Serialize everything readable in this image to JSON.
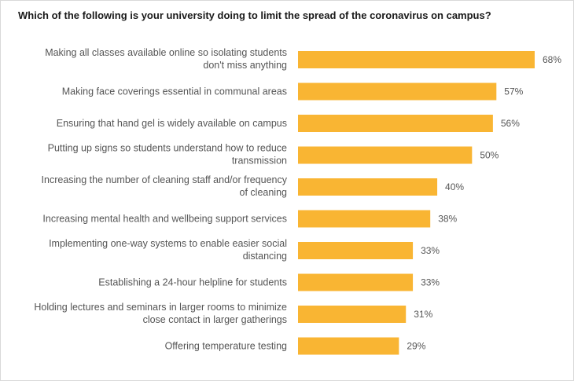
{
  "chart_data": {
    "type": "bar",
    "orientation": "horizontal",
    "title": "Which of the following is your university doing to limit the spread of the coronavirus on campus?",
    "categories": [
      [
        "Making all classes available online so isolating students",
        "don't miss anything"
      ],
      [
        "Making face coverings essential in communal areas"
      ],
      [
        "Ensuring that hand gel is widely available on campus"
      ],
      [
        "Putting up signs so students understand how to reduce",
        "transmission"
      ],
      [
        "Increasing the number of cleaning staff and/or frequency",
        "of cleaning"
      ],
      [
        "Increasing mental health and wellbeing support services"
      ],
      [
        "Implementing one-way systems to enable easier social",
        "distancing"
      ],
      [
        "Establishing a 24-hour helpline for students"
      ],
      [
        "Holding lectures and seminars in larger rooms to minimize",
        "close contact in larger gatherings"
      ],
      [
        "Offering temperature testing"
      ]
    ],
    "values": [
      68,
      57,
      56,
      50,
      40,
      38,
      33,
      33,
      31,
      29
    ],
    "value_labels": [
      "68%",
      "57%",
      "56%",
      "50%",
      "40%",
      "38%",
      "33%",
      "33%",
      "31%",
      "29%"
    ],
    "unit": "%",
    "xlabel": "",
    "ylabel": "",
    "xlim": [
      0,
      68
    ],
    "grid": false,
    "legend": "none",
    "bar_color": "#f9b533"
  }
}
